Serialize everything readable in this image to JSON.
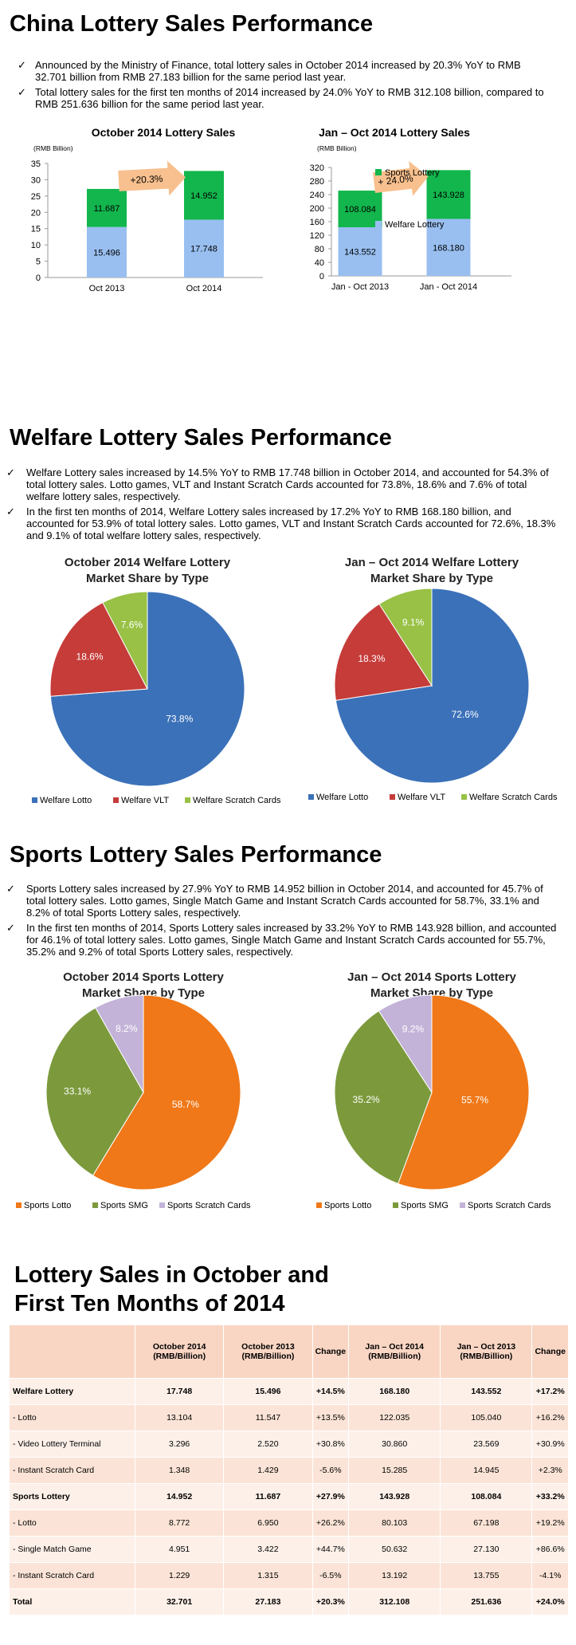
{
  "section1": {
    "title": "China Lottery Sales Performance",
    "bullets": [
      "Announced by the Ministry of Finance, total lottery sales in October 2014 increased by 20.3% YoY to RMB 32.701 billion from RMB 27.183 billion for the same period last year.",
      "Total lottery sales for the first ten months of 2014 increased by 24.0% YoY to RMB 312.108 billion, compared to RMB 251.636 billion for the same period last year."
    ]
  },
  "section2": {
    "title": "Welfare Lottery Sales Performance",
    "bullets": [
      "Welfare Lottery sales increased by 14.5% YoY to RMB 17.748 billion in October 2014, and accounted for 54.3% of total lottery sales. Lotto games, VLT and Instant Scratch Cards accounted for 73.8%, 18.6% and 7.6% of total welfare lottery sales, respectively.",
      "In the first ten months of 2014, Welfare Lottery sales increased by 17.2% YoY to RMB 168.180 billion, and accounted for 53.9% of total lottery sales. Lotto games, VLT and Instant Scratch Cards accounted for 72.6%, 18.3% and 9.1% of total welfare lottery sales, respectively."
    ]
  },
  "section3": {
    "title": "Sports Lottery Sales Performance",
    "bullets": [
      "Sports Lottery sales increased by 27.9% YoY to RMB 14.952 billion in October 2014, and accounted for 45.7% of total lottery sales. Lotto games, Single Match Game and Instant Scratch Cards accounted for 58.7%, 33.1% and 8.2% of total Sports Lottery sales, respectively.",
      "In the first ten months of 2014, Sports Lottery sales increased by 33.2% YoY to RMB 143.928 billion, and accounted for 46.1% of total lottery sales. Lotto games, Single Match Game and Instant Scratch Cards accounted for 55.7%, 35.2% and 9.2% of total Sports Lottery sales, respectively."
    ]
  },
  "section4": {
    "title_line1": "Lottery Sales in October and",
    "title_line2": "First Ten Months of 2014"
  },
  "colors": {
    "welfare_bar": "#99bff0",
    "sports_bar": "#12b64d",
    "arrow": "#f8c08e",
    "welfare_lotto": "#3b71b9",
    "welfare_vlt": "#c53c39",
    "welfare_scratch": "#98c146",
    "sports_lotto": "#f07818",
    "sports_smg": "#7c9a3c",
    "sports_scratch": "#c3b3d8"
  },
  "chart_data": [
    {
      "type": "bar",
      "stacked": true,
      "title": "October 2014 Lottery Sales",
      "ylabel": "(RMB Billion)",
      "categories": [
        "Oct 2013",
        "Oct 2014"
      ],
      "series": [
        {
          "name": "Welfare Lottery",
          "values": [
            15.496,
            17.748
          ]
        },
        {
          "name": "Sports Lottery",
          "values": [
            11.687,
            14.952
          ]
        }
      ],
      "ylim": [
        0,
        35
      ],
      "yticks": [
        0,
        5,
        10,
        15,
        20,
        25,
        30,
        35
      ],
      "annotation": "+20.3%",
      "grid": false
    },
    {
      "type": "bar",
      "stacked": true,
      "title": "Jan – Oct 2014 Lottery Sales",
      "ylabel": "(RMB Billion)",
      "categories": [
        "Jan - Oct 2013",
        "Jan - Oct 2014"
      ],
      "series": [
        {
          "name": "Welfare Lottery",
          "values": [
            143.552,
            168.18
          ]
        },
        {
          "name": "Sports Lottery",
          "values": [
            108.084,
            143.928
          ]
        }
      ],
      "ylim": [
        0,
        320
      ],
      "yticks": [
        0,
        40,
        80,
        120,
        160,
        200,
        240,
        280,
        320
      ],
      "annotation": "+ 24.0%",
      "legend": [
        "Sports Lottery",
        "Welfare Lottery"
      ],
      "legend_position": "right",
      "grid": false
    },
    {
      "type": "pie",
      "title_line1": "October 2014 Welfare Lottery",
      "title_line2": "Market Share by Type",
      "slices": [
        {
          "name": "Welfare Lotto",
          "value": 73.8,
          "label": "73.8%"
        },
        {
          "name": "Welfare VLT",
          "value": 18.6,
          "label": "18.6%"
        },
        {
          "name": "Welfare Scratch Cards",
          "value": 7.6,
          "label": "7.6%"
        }
      ],
      "legend_position": "bottom"
    },
    {
      "type": "pie",
      "title_line1": "Jan – Oct 2014 Welfare Lottery",
      "title_line2": "Market Share by Type",
      "slices": [
        {
          "name": "Welfare Lotto",
          "value": 72.6,
          "label": "72.6%"
        },
        {
          "name": "Welfare VLT",
          "value": 18.3,
          "label": "18.3%"
        },
        {
          "name": "Welfare Scratch Cards",
          "value": 9.1,
          "label": "9.1%"
        }
      ],
      "legend_position": "bottom"
    },
    {
      "type": "pie",
      "title_line1": "October 2014 Sports Lottery",
      "title_line2": "Market Share by Type",
      "slices": [
        {
          "name": "Sports Lotto",
          "value": 58.7,
          "label": "58.7%"
        },
        {
          "name": "Sports SMG",
          "value": 33.1,
          "label": "33.1%"
        },
        {
          "name": "Sports Scratch Cards",
          "value": 8.2,
          "label": "8.2%"
        }
      ],
      "legend_position": "bottom"
    },
    {
      "type": "pie",
      "title_line1": "Jan – Oct 2014 Sports Lottery",
      "title_line2": "Market Share by Type",
      "slices": [
        {
          "name": "Sports Lotto",
          "value": 55.7,
          "label": "55.7%"
        },
        {
          "name": "Sports SMG",
          "value": 35.2,
          "label": "35.2%"
        },
        {
          "name": "Sports Scratch Cards",
          "value": 9.2,
          "label": "9.2%"
        }
      ],
      "legend_position": "bottom"
    },
    {
      "type": "table",
      "headers": [
        "",
        "October 2014 (RMB/Billion)",
        "October 2013 (RMB/Billion)",
        "Change",
        "Jan – Oct 2014 (RMB/Billion)",
        "Jan – Oct 2013 (RMB/Billion)",
        "Change"
      ],
      "rows": [
        {
          "bold": true,
          "cells": [
            "Welfare Lottery",
            "17.748",
            "15.496",
            "+14.5%",
            "168.180",
            "143.552",
            "+17.2%"
          ]
        },
        {
          "bold": false,
          "cells": [
            "- Lotto",
            "13.104",
            "11.547",
            "+13.5%",
            "122.035",
            "105.040",
            "+16.2%"
          ]
        },
        {
          "bold": false,
          "cells": [
            "- Video Lottery Terminal",
            "3.296",
            "2.520",
            "+30.8%",
            "30.860",
            "23.569",
            "+30.9%"
          ]
        },
        {
          "bold": false,
          "cells": [
            "- Instant Scratch Card",
            "1.348",
            "1.429",
            "-5.6%",
            "15.285",
            "14.945",
            "+2.3%"
          ]
        },
        {
          "bold": true,
          "cells": [
            "Sports Lottery",
            "14.952",
            "11.687",
            "+27.9%",
            "143.928",
            "108.084",
            "+33.2%"
          ]
        },
        {
          "bold": false,
          "cells": [
            "- Lotto",
            "8.772",
            "6.950",
            "+26.2%",
            "80.103",
            "67.198",
            "+19.2%"
          ]
        },
        {
          "bold": false,
          "cells": [
            "- Single Match Game",
            "4.951",
            "3.422",
            "+44.7%",
            "50.632",
            "27.130",
            "+86.6%"
          ]
        },
        {
          "bold": false,
          "cells": [
            "- Instant Scratch Card",
            "1.229",
            "1.315",
            "-6.5%",
            "13.192",
            "13.755",
            "-4.1%"
          ]
        },
        {
          "bold": true,
          "cells": [
            "Total",
            "32.701",
            "27.183",
            "+20.3%",
            "312.108",
            "251.636",
            "+24.0%"
          ]
        }
      ]
    }
  ]
}
